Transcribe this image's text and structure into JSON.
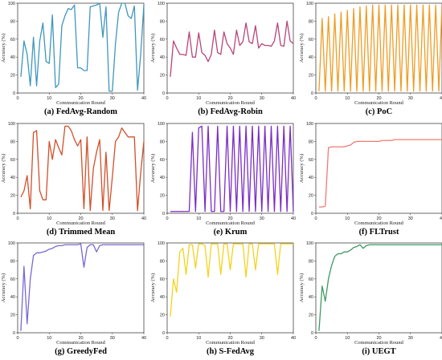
{
  "chart_data": [
    {
      "type": "line",
      "title": "(a) FedAvg-Random",
      "xlabel": "Communication Round",
      "ylabel": "Accuracy (%)",
      "xlim": [
        0,
        40
      ],
      "ylim": [
        0,
        100
      ],
      "color": "#3f97bd",
      "x": [
        1,
        2,
        3,
        4,
        5,
        6,
        7,
        8,
        9,
        10,
        11,
        12,
        13,
        14,
        15,
        16,
        17,
        18,
        19,
        20,
        21,
        22,
        23,
        24,
        25,
        26,
        27,
        28,
        29,
        30,
        31,
        32,
        33,
        34,
        35,
        36,
        37,
        38,
        39,
        40
      ],
      "values": [
        18,
        58,
        43,
        8,
        62,
        8,
        58,
        78,
        35,
        33,
        87,
        6,
        10,
        75,
        86,
        94,
        93,
        98,
        28,
        28,
        25,
        25,
        96,
        97,
        98,
        100,
        62,
        96,
        2,
        2,
        55,
        90,
        100,
        100,
        86,
        83,
        97,
        3,
        43,
        98
      ]
    },
    {
      "type": "line",
      "title": "(b) FedAvg-Robin",
      "xlabel": "Communication Round",
      "ylabel": "Accuracy (%)",
      "xlim": [
        0,
        40
      ],
      "ylim": [
        0,
        100
      ],
      "color": "#b8457a",
      "x": [
        1,
        2,
        3,
        4,
        5,
        6,
        7,
        8,
        9,
        10,
        11,
        12,
        13,
        14,
        15,
        16,
        17,
        18,
        19,
        20,
        21,
        22,
        23,
        24,
        25,
        26,
        27,
        28,
        29,
        30,
        31,
        32,
        33,
        34,
        35,
        36,
        37,
        38,
        39,
        40
      ],
      "values": [
        18,
        58,
        50,
        43,
        43,
        42,
        68,
        40,
        40,
        67,
        45,
        42,
        35,
        43,
        70,
        45,
        43,
        68,
        55,
        50,
        43,
        70,
        53,
        57,
        78,
        57,
        55,
        75,
        50,
        55,
        53,
        53,
        52,
        58,
        78,
        53,
        52,
        80,
        58,
        55
      ]
    },
    {
      "type": "line",
      "title": "(c) PoC",
      "xlabel": "Communication Round",
      "ylabel": "Accuracy (%)",
      "xlim": [
        0,
        40
      ],
      "ylim": [
        0,
        100
      ],
      "color": "#ef9c23",
      "x": [
        1,
        2,
        3,
        4,
        5,
        6,
        7,
        8,
        9,
        10,
        11,
        12,
        13,
        14,
        15,
        16,
        17,
        18,
        19,
        20,
        21,
        22,
        23,
        24,
        25,
        26,
        27,
        28,
        29,
        30,
        31,
        32,
        33,
        34,
        35,
        36,
        37,
        38,
        39,
        40
      ],
      "values": [
        2,
        83,
        2,
        85,
        2,
        88,
        2,
        90,
        2,
        92,
        2,
        94,
        2,
        96,
        2,
        97,
        2,
        98,
        2,
        98,
        2,
        98,
        2,
        98,
        2,
        98,
        2,
        98,
        2,
        98,
        2,
        98,
        2,
        98,
        2,
        98,
        2,
        98,
        2,
        98
      ]
    },
    {
      "type": "line",
      "title": "(d) Trimmed Mean",
      "xlabel": "Communication Round",
      "ylabel": "Accuracy (%)",
      "xlim": [
        0,
        40
      ],
      "ylim": [
        0,
        100
      ],
      "color": "#d1502a",
      "x": [
        1,
        2,
        3,
        4,
        5,
        6,
        7,
        8,
        9,
        10,
        11,
        12,
        13,
        14,
        15,
        16,
        17,
        18,
        19,
        20,
        21,
        22,
        23,
        24,
        25,
        26,
        27,
        28,
        29,
        30,
        31,
        32,
        33,
        34,
        35,
        36,
        37,
        38,
        39,
        40
      ],
      "values": [
        18,
        25,
        42,
        5,
        90,
        92,
        25,
        15,
        15,
        80,
        60,
        82,
        73,
        65,
        97,
        97,
        92,
        82,
        75,
        82,
        5,
        85,
        3,
        50,
        68,
        82,
        3,
        68,
        3,
        40,
        80,
        85,
        95,
        90,
        85,
        85,
        85,
        3,
        45,
        80
      ]
    },
    {
      "type": "line",
      "title": "(e) Krum",
      "xlabel": "Communication Round",
      "ylabel": "Accuracy (%)",
      "xlim": [
        0,
        40
      ],
      "ylim": [
        0,
        100
      ],
      "color": "#7b2dc5",
      "x": [
        1,
        2,
        3,
        4,
        5,
        6,
        7,
        8,
        9,
        10,
        11,
        12,
        13,
        14,
        15,
        16,
        17,
        18,
        19,
        20,
        21,
        22,
        23,
        24,
        25,
        26,
        27,
        28,
        29,
        30,
        31,
        32,
        33,
        34,
        35,
        36,
        37,
        38,
        39,
        40
      ],
      "values": [
        2,
        2,
        2,
        2,
        2,
        2,
        2,
        90,
        2,
        95,
        97,
        2,
        97,
        2,
        2,
        97,
        2,
        2,
        97,
        2,
        97,
        2,
        97,
        2,
        97,
        2,
        97,
        2,
        97,
        2,
        97,
        2,
        97,
        2,
        97,
        2,
        97,
        2,
        97,
        2
      ]
    },
    {
      "type": "line",
      "title": "(f) FLTrust",
      "xlabel": "Communication Round",
      "ylabel": "Accuracy (%)",
      "xlim": [
        0,
        40
      ],
      "ylim": [
        0,
        100
      ],
      "color": "#f07a73",
      "x": [
        1,
        2,
        3,
        4,
        5,
        6,
        7,
        8,
        9,
        10,
        11,
        12,
        13,
        14,
        15,
        16,
        17,
        18,
        19,
        20,
        21,
        22,
        23,
        24,
        25,
        26,
        27,
        28,
        29,
        30,
        31,
        32,
        33,
        34,
        35,
        36,
        37,
        38,
        39,
        40
      ],
      "values": [
        7,
        7,
        8,
        73,
        74,
        74,
        74,
        74,
        74,
        75,
        76,
        79,
        80,
        80,
        80,
        80,
        80,
        80,
        80,
        80,
        81,
        81,
        81,
        81,
        82,
        82,
        82,
        82,
        82,
        82,
        82,
        82,
        82,
        82,
        82,
        82,
        82,
        82,
        82,
        82
      ]
    },
    {
      "type": "line",
      "title": "(g) GreedyFed",
      "xlabel": "Communication Round",
      "ylabel": "Accuracy (%)",
      "xlim": [
        0,
        40
      ],
      "ylim": [
        0,
        100
      ],
      "color": "#7a69d1",
      "x": [
        1,
        2,
        3,
        4,
        5,
        6,
        7,
        8,
        9,
        10,
        11,
        12,
        13,
        14,
        15,
        16,
        17,
        18,
        19,
        20,
        21,
        22,
        23,
        24,
        25,
        26,
        27,
        28,
        29,
        30,
        31,
        32,
        33,
        34,
        35,
        36,
        37,
        38,
        39,
        40
      ],
      "values": [
        2,
        74,
        10,
        60,
        86,
        89,
        89,
        90,
        91,
        93,
        94,
        96,
        97,
        97,
        98,
        98,
        98,
        98,
        98,
        99,
        73,
        95,
        98,
        98,
        90,
        97,
        98,
        98,
        98,
        98,
        98,
        98,
        98,
        98,
        98,
        98,
        98,
        98,
        98,
        98
      ]
    },
    {
      "type": "line",
      "title": "(h) S-FedAvg",
      "xlabel": "Communication Round",
      "ylabel": "Accuracy (%)",
      "xlim": [
        0,
        40
      ],
      "ylim": [
        0,
        100
      ],
      "color": "#f5d21f",
      "x": [
        1,
        2,
        3,
        4,
        5,
        6,
        7,
        8,
        9,
        10,
        11,
        12,
        13,
        14,
        15,
        16,
        17,
        18,
        19,
        20,
        21,
        22,
        23,
        24,
        25,
        26,
        27,
        28,
        29,
        30,
        31,
        32,
        33,
        34,
        35,
        36,
        37,
        38,
        39,
        40
      ],
      "values": [
        18,
        60,
        45,
        90,
        94,
        65,
        98,
        98,
        72,
        99,
        99,
        97,
        62,
        99,
        99,
        99,
        65,
        99,
        99,
        70,
        99,
        99,
        99,
        99,
        62,
        99,
        99,
        70,
        99,
        99,
        99,
        99,
        99,
        99,
        65,
        99,
        99,
        99,
        99,
        99
      ]
    },
    {
      "type": "line",
      "title": "(i) UEGT",
      "xlabel": "Communication Round",
      "ylabel": "Accuracy (%)",
      "xlim": [
        0,
        40
      ],
      "ylim": [
        0,
        100
      ],
      "color": "#3e9a62",
      "x": [
        1,
        2,
        3,
        4,
        5,
        6,
        7,
        8,
        9,
        10,
        11,
        12,
        13,
        14,
        15,
        16,
        17,
        18,
        19,
        20,
        21,
        22,
        23,
        24,
        25,
        26,
        27,
        28,
        29,
        30,
        31,
        32,
        33,
        34,
        35,
        36,
        37,
        38,
        39,
        40
      ],
      "values": [
        2,
        52,
        35,
        60,
        75,
        85,
        88,
        88,
        90,
        90,
        92,
        95,
        96,
        98,
        94,
        97,
        98,
        98,
        98,
        98,
        98,
        98,
        98,
        98,
        98,
        98,
        98,
        98,
        98,
        98,
        98,
        98,
        98,
        98,
        98,
        98,
        98,
        98,
        98,
        98
      ]
    }
  ]
}
